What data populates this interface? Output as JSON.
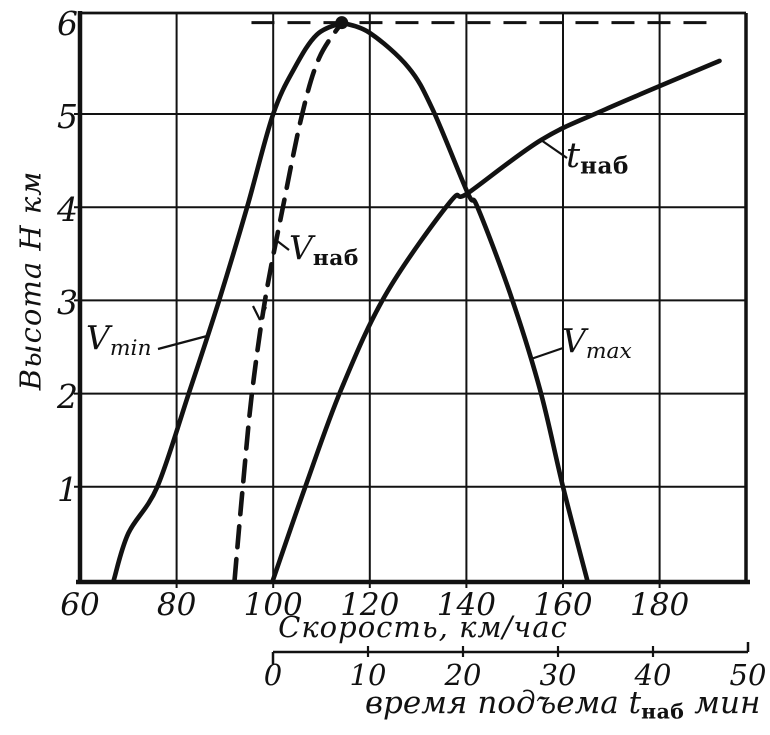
{
  "figure": {
    "ink": "#121212",
    "background": "#ffffff"
  },
  "axes": {
    "y": {
      "title": "Высота H км",
      "ticks": [
        1,
        2,
        3,
        4,
        5,
        6
      ]
    },
    "x_speed": {
      "title": "Скорость, км/час",
      "ticks": [
        60,
        80,
        100,
        120,
        140,
        160,
        180
      ]
    },
    "x_time": {
      "title_pre": "время подъема ",
      "title_sym": "t",
      "title_sub": "наб",
      "title_post": " мин",
      "ticks": [
        0,
        10,
        20,
        30,
        40,
        50
      ]
    }
  },
  "labels": {
    "vmin": {
      "main": "V",
      "sub": "min"
    },
    "vnab": {
      "main": "V",
      "sub": "наб"
    },
    "tnab": {
      "main": "t",
      "sub": "наб"
    },
    "vmax": {
      "main": "V",
      "sub": "max"
    }
  },
  "chart_data": {
    "type": "line",
    "title": "",
    "ylabel": "Высота H км",
    "xlabel_primary": "Скорость, км/час",
    "xlabel_secondary": "время подъема t_наб мин",
    "ylim": [
      0,
      6.15
    ],
    "x_speed_range": [
      60,
      198
    ],
    "x_time_range": [
      0,
      50
    ],
    "grid": true,
    "grid_speeds": [
      80,
      100,
      120,
      140,
      160,
      180
    ],
    "grid_heights": [
      1,
      2,
      3,
      4,
      5
    ],
    "time_axis_ticks": [
      0,
      10,
      20,
      30,
      40,
      50
    ],
    "series": [
      {
        "name": "V_min",
        "x_axis": "speed",
        "style": "solid",
        "points": [
          [
            67,
            0
          ],
          [
            70,
            0.5
          ],
          [
            76,
            1
          ],
          [
            82.5,
            2
          ],
          [
            88.8,
            3
          ],
          [
            94.6,
            4
          ],
          [
            100,
            5
          ],
          [
            104.5,
            5.5
          ],
          [
            109,
            5.85
          ],
          [
            114.2,
            5.98
          ]
        ]
      },
      {
        "name": "V_max",
        "x_axis": "speed",
        "style": "solid",
        "points": [
          [
            114.2,
            5.98
          ],
          [
            120,
            5.87
          ],
          [
            128,
            5.5
          ],
          [
            133,
            5.05
          ],
          [
            140.3,
            4.15
          ],
          [
            142.3,
            4.0
          ],
          [
            149,
            3.08
          ],
          [
            155.2,
            2.05
          ],
          [
            160,
            1.0
          ],
          [
            165,
            0
          ]
        ]
      },
      {
        "name": "V_наб",
        "x_axis": "speed",
        "style": "dashed",
        "points": [
          [
            92,
            0
          ],
          [
            93.7,
            1
          ],
          [
            95.6,
            2
          ],
          [
            98.3,
            3
          ],
          [
            102,
            4
          ],
          [
            106,
            5
          ],
          [
            109.5,
            5.6
          ],
          [
            114.2,
            5.98
          ]
        ]
      },
      {
        "name": "t_наб",
        "x_axis": "time",
        "style": "solid",
        "points": [
          [
            0,
            0
          ],
          [
            3.4,
            1
          ],
          [
            7.2,
            2.05
          ],
          [
            11.9,
            3.07
          ],
          [
            18.6,
            4.05
          ],
          [
            20.5,
            4.15
          ],
          [
            28.2,
            4.72
          ],
          [
            35,
            5.05
          ],
          [
            47,
            5.57
          ]
        ]
      }
    ],
    "ceiling_line": {
      "h": 5.98,
      "speed_from": 95.5,
      "speed_to": 190.5,
      "style": "dashed"
    },
    "ceiling_point": {
      "speed": 114.2,
      "h": 5.98
    }
  }
}
